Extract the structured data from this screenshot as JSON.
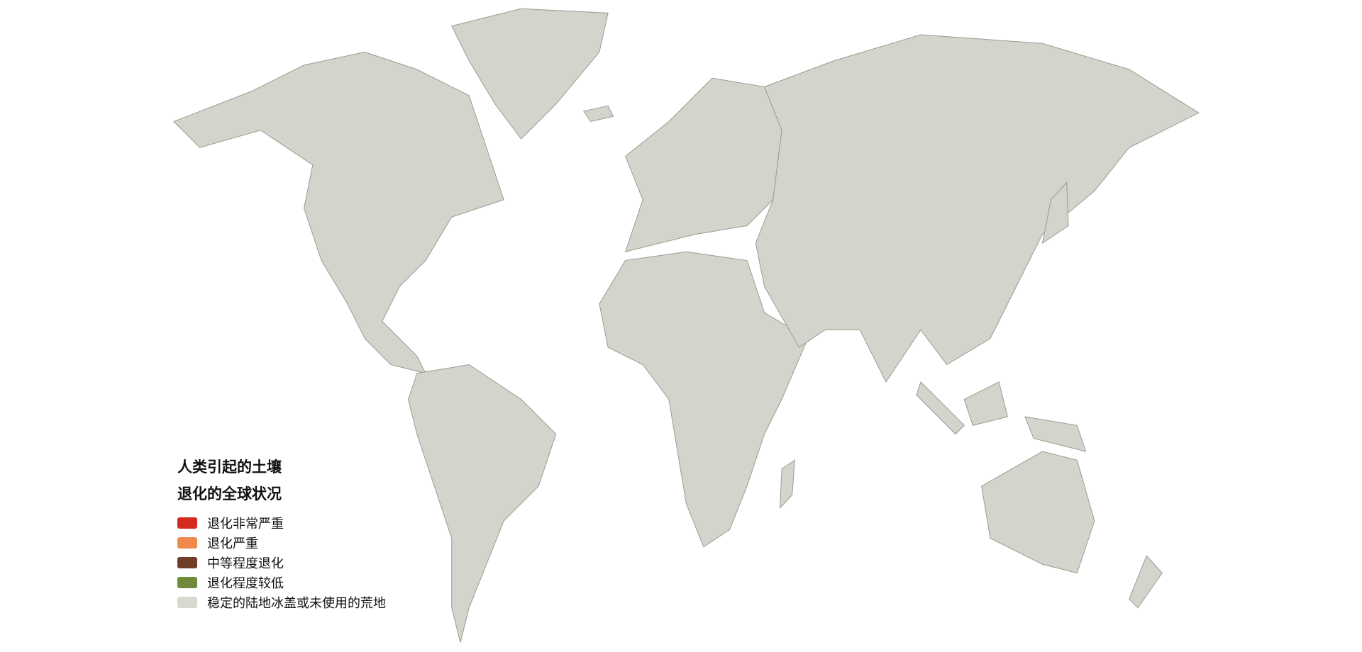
{
  "legend": {
    "title_line1": "人类引起的土壤",
    "title_line2": "退化的全球状况",
    "items": [
      {
        "label": "退化非常严重",
        "color": "#d42a22"
      },
      {
        "label": "退化严重",
        "color": "#f08a4b"
      },
      {
        "label": "中等程度退化",
        "color": "#6e3f26"
      },
      {
        "label": "退化程度较低",
        "color": "#6f8a3a"
      },
      {
        "label": "稳定的陆地冰盖或未使用的荒地",
        "color": "#d8d8d0"
      }
    ]
  },
  "colors": {
    "land_base": "#d4d4cc",
    "background": "#ffffff",
    "border": "#8a8a80"
  }
}
